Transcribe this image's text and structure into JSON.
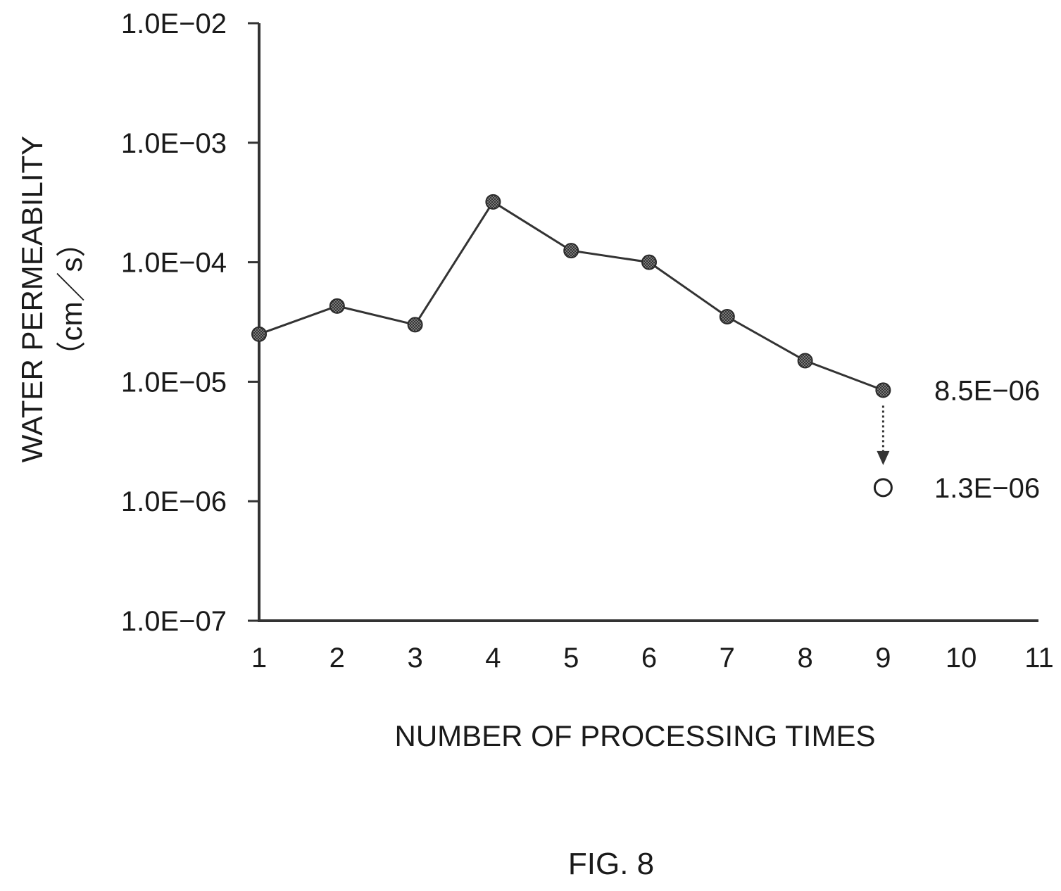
{
  "chart_data": {
    "type": "line",
    "ylabel": "WATER PERMEABILITY",
    "yunit": "（cm／s）",
    "xlabel": "NUMBER OF PROCESSING TIMES",
    "caption": "FIG. 8",
    "y_scale": "log",
    "ylim": [
      1e-07,
      0.01
    ],
    "xlim": [
      1,
      11
    ],
    "y_ticks": [
      {
        "value": 0.01,
        "label": "1.0E−02"
      },
      {
        "value": 0.001,
        "label": "1.0E−03"
      },
      {
        "value": 0.0001,
        "label": "1.0E−04"
      },
      {
        "value": 1e-05,
        "label": "1.0E−05"
      },
      {
        "value": 1e-06,
        "label": "1.0E−06"
      },
      {
        "value": 1e-07,
        "label": "1.0E−07"
      }
    ],
    "x_ticks": [
      {
        "value": 1,
        "label": "1"
      },
      {
        "value": 2,
        "label": "2"
      },
      {
        "value": 3,
        "label": "3"
      },
      {
        "value": 4,
        "label": "4"
      },
      {
        "value": 5,
        "label": "5"
      },
      {
        "value": 6,
        "label": "6"
      },
      {
        "value": 7,
        "label": "7"
      },
      {
        "value": 8,
        "label": "8"
      },
      {
        "value": 9,
        "label": "9"
      },
      {
        "value": 10,
        "label": "10"
      },
      {
        "value": 11,
        "label": "11"
      }
    ],
    "grid": false,
    "series": [
      {
        "marker": "filled-circle",
        "points": [
          {
            "x": 1,
            "y": 2.5e-05
          },
          {
            "x": 2,
            "y": 4.3e-05
          },
          {
            "x": 3,
            "y": 3e-05
          },
          {
            "x": 4,
            "y": 0.00032
          },
          {
            "x": 5,
            "y": 0.000125
          },
          {
            "x": 6,
            "y": 0.0001
          },
          {
            "x": 7,
            "y": 3.5e-05
          },
          {
            "x": 8,
            "y": 1.5e-05
          },
          {
            "x": 9,
            "y": 8.5e-06
          }
        ]
      },
      {
        "marker": "open-circle",
        "points": [
          {
            "x": 9,
            "y": 1.3e-06
          }
        ]
      }
    ],
    "annotations": [
      {
        "x": 9,
        "y": 8.5e-06,
        "text": "8.5E−06"
      },
      {
        "x": 9,
        "y": 1.3e-06,
        "text": "1.3E−06"
      }
    ],
    "arrow": {
      "x": 9,
      "from": 8.5e-06,
      "to": 1.3e-06,
      "style": "dotted"
    },
    "colors": {
      "line": "#333333",
      "marker_fill": "#6e6e6e",
      "axis": "#333333"
    }
  }
}
